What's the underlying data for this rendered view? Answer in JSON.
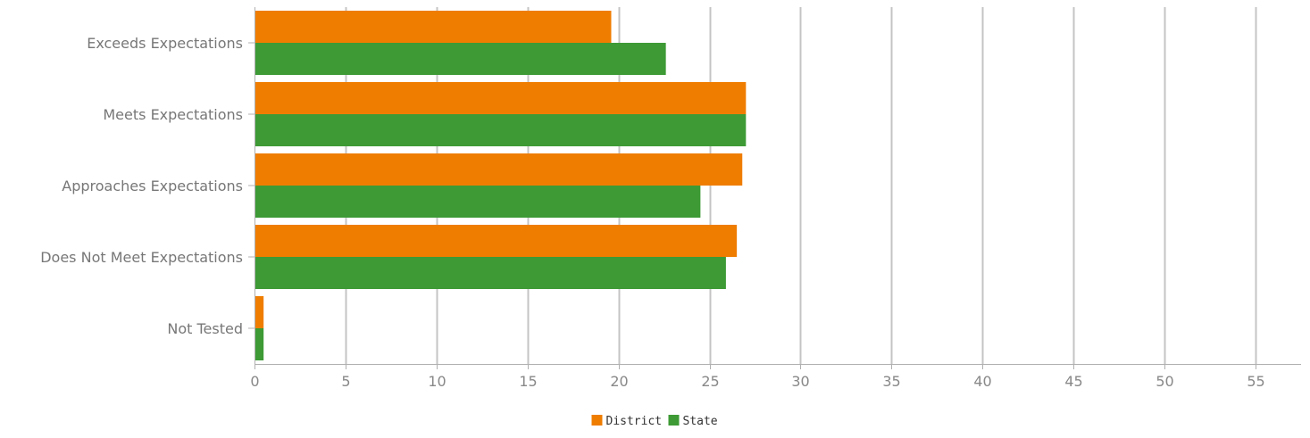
{
  "chart_data": {
    "type": "bar",
    "orientation": "horizontal",
    "categories": [
      "Exceeds Expectations",
      "Meets Expectations",
      "Approaches Expectations",
      "Does Not Meet Expectations",
      "Not Tested"
    ],
    "series": [
      {
        "name": "District",
        "color": "#ef7d00",
        "values": [
          19.6,
          27.0,
          26.8,
          26.5,
          0.5
        ]
      },
      {
        "name": "State",
        "color": "#3d9a35",
        "values": [
          22.6,
          27.0,
          24.5,
          25.9,
          0.5
        ]
      }
    ],
    "xlim": [
      0,
      57.5
    ],
    "xticks": [
      0,
      5,
      10,
      15,
      20,
      25,
      30,
      35,
      40,
      45,
      50,
      55
    ],
    "grid": true,
    "legend_position": "bottom-center"
  }
}
